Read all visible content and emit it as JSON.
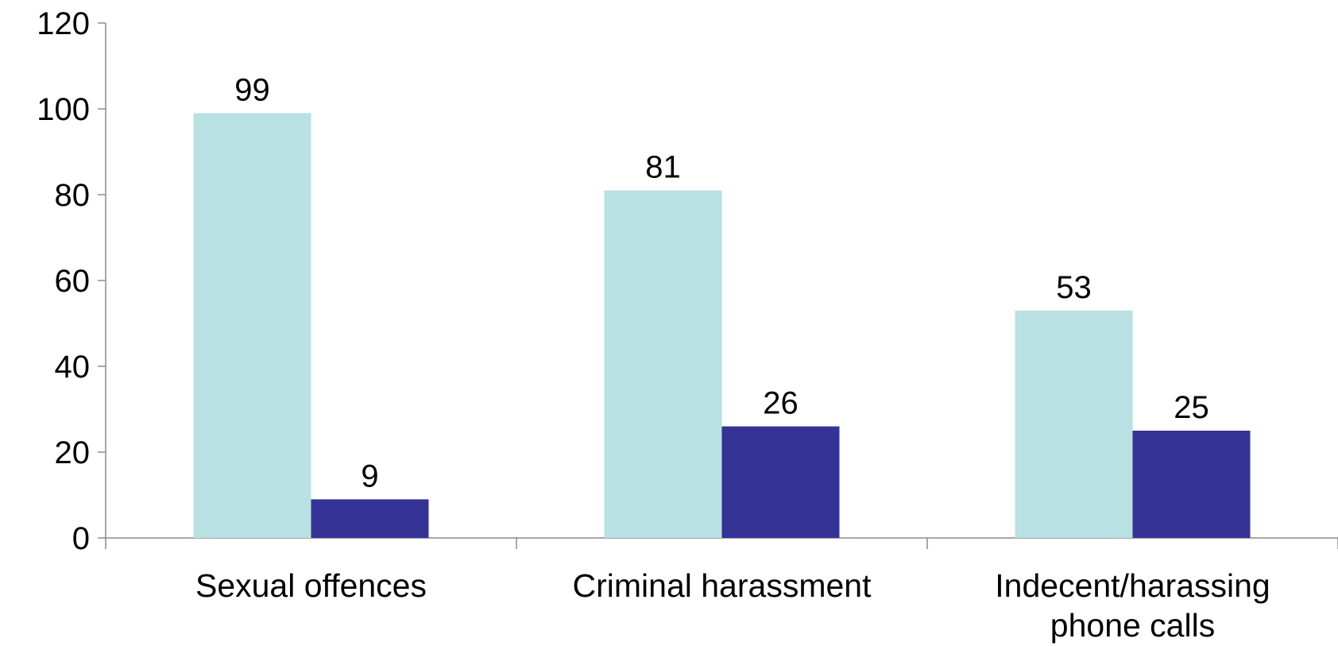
{
  "chart_data": {
    "type": "bar",
    "title": "",
    "xlabel": "",
    "ylabel": "",
    "categories": [
      [
        "Sexual offences"
      ],
      [
        "Criminal harassment"
      ],
      [
        "Indecent/harassing",
        "phone calls"
      ]
    ],
    "series": [
      {
        "values": [
          99,
          81,
          53
        ],
        "color": "#b9e0e2"
      },
      {
        "values": [
          9,
          26,
          25
        ],
        "color": "#353396"
      }
    ],
    "ylim": [
      0,
      120
    ],
    "yticks": [
      0,
      20,
      40,
      60,
      80,
      100,
      120
    ],
    "grid": false,
    "legend": "none"
  }
}
